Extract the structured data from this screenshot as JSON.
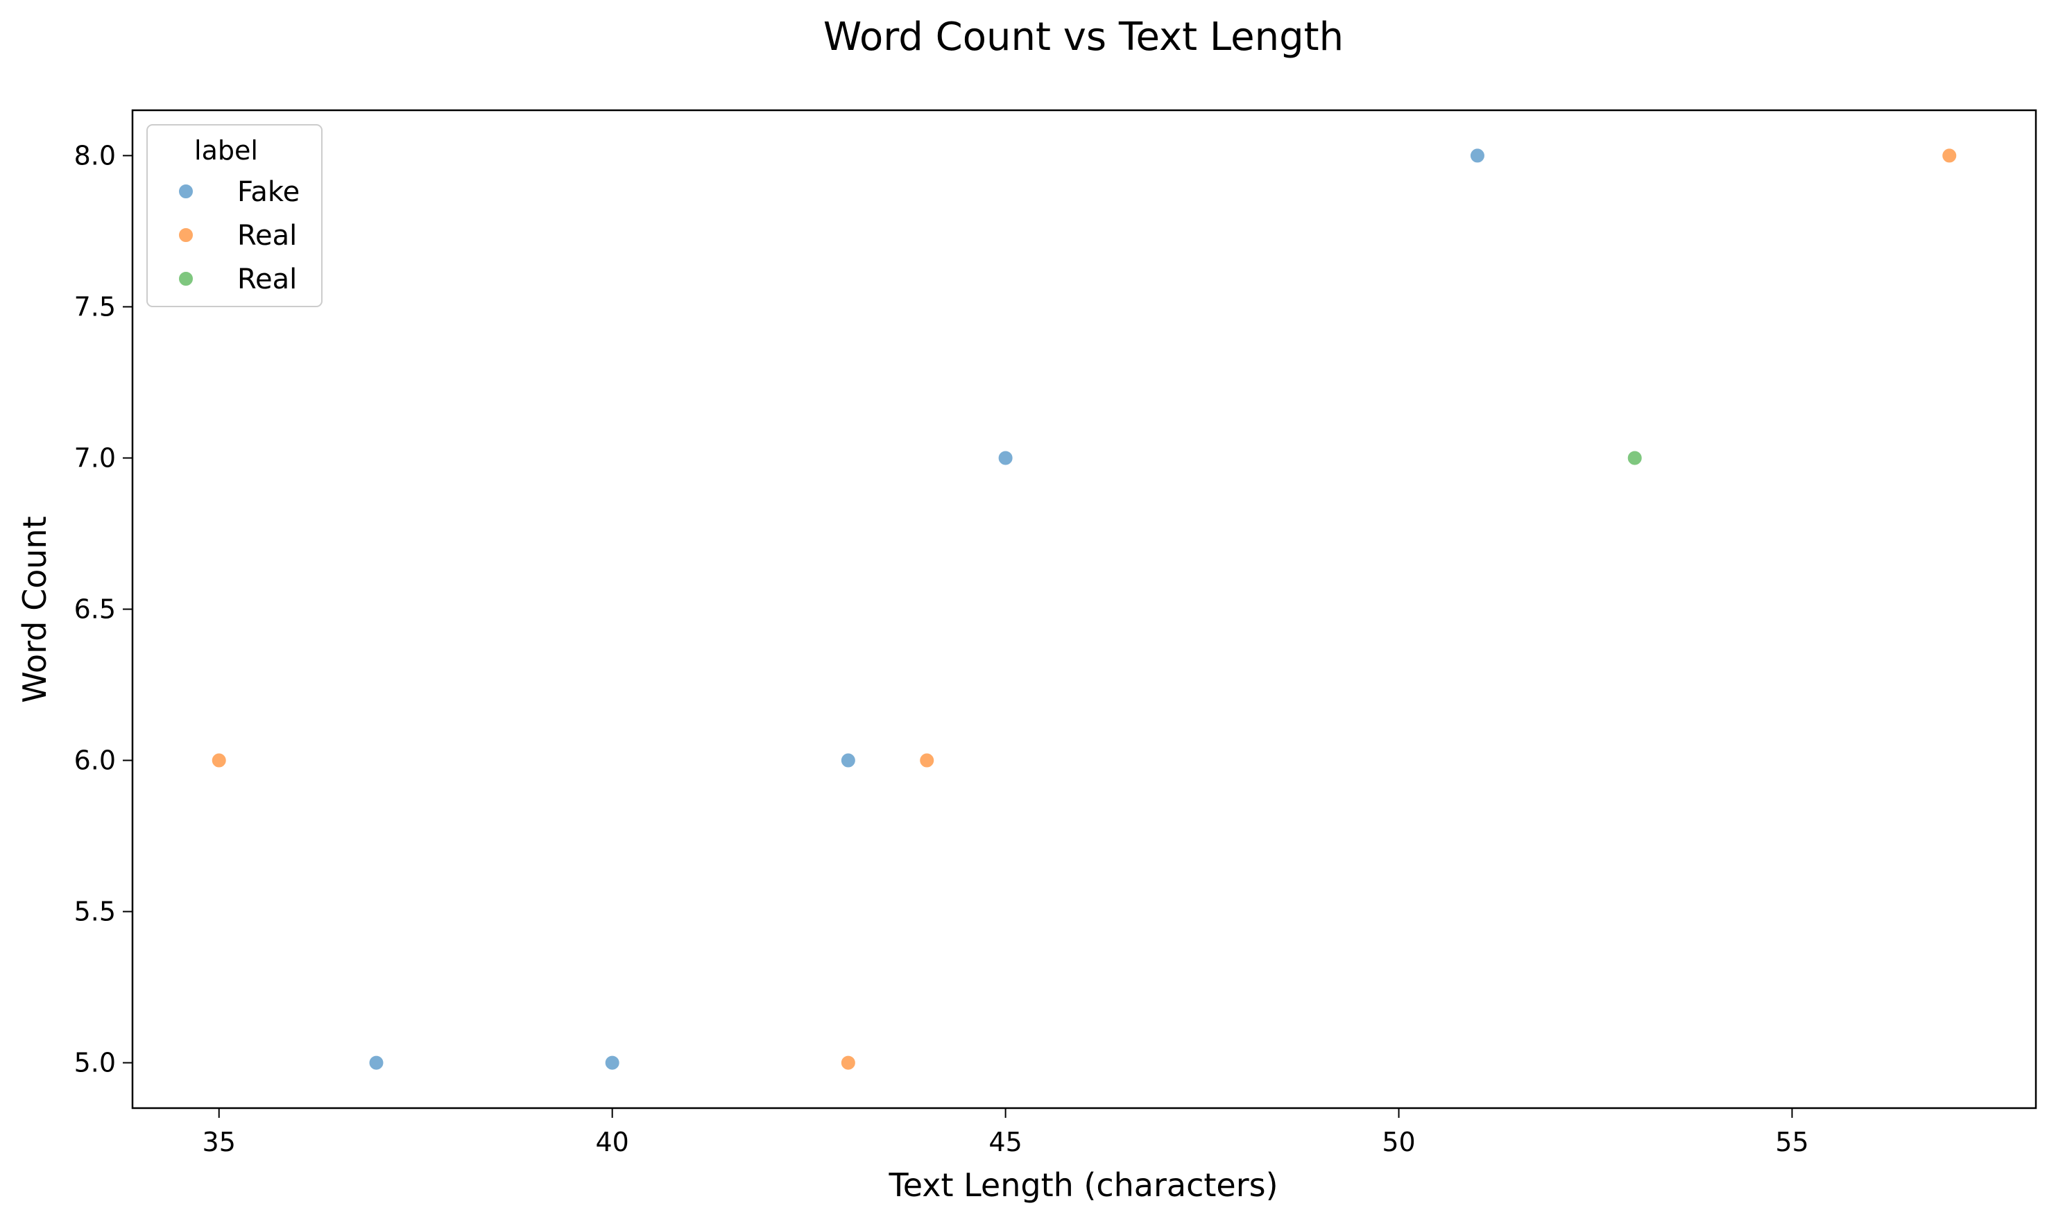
{
  "chart_data": {
    "type": "scatter",
    "title": "Word Count vs Text Length",
    "xlabel": "Text Length (characters)",
    "ylabel": "Word Count",
    "xlim": [
      33.9,
      58.1
    ],
    "ylim": [
      4.85,
      8.15
    ],
    "xticks": [
      35,
      40,
      45,
      50,
      55
    ],
    "yticks": [
      5.0,
      5.5,
      6.0,
      6.5,
      7.0,
      7.5,
      8.0
    ],
    "xtick_labels": [
      "35",
      "40",
      "45",
      "50",
      "55"
    ],
    "ytick_labels": [
      "5.0",
      "5.5",
      "6.0",
      "6.5",
      "7.0",
      "7.5",
      "8.0"
    ],
    "grid": false,
    "legend": {
      "title": "label",
      "placement": "top-left"
    },
    "series": [
      {
        "name": "Fake",
        "color": "#7aadd4",
        "x": [
          37,
          40,
          43,
          45,
          51
        ],
        "y": [
          5,
          5,
          6,
          7,
          8
        ]
      },
      {
        "name": "Real",
        "color": "#ffaa66",
        "x": [
          35,
          43,
          44,
          57
        ],
        "y": [
          6,
          5,
          6,
          8
        ]
      },
      {
        "name": "Real",
        "color": "#7fc77f",
        "x": [
          53
        ],
        "y": [
          7
        ]
      }
    ]
  }
}
